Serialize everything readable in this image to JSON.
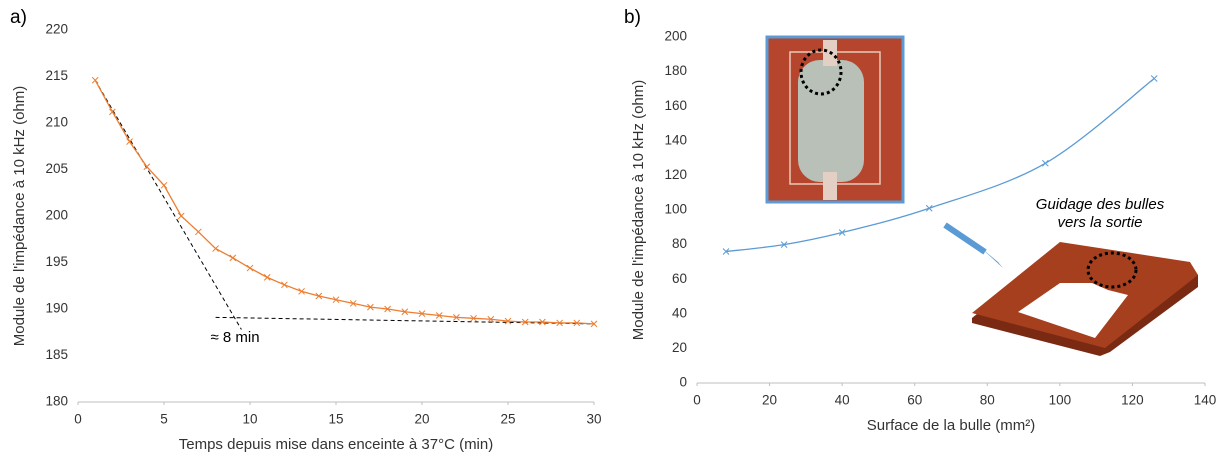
{
  "chart_data": [
    {
      "type": "line",
      "panel_label": "a)",
      "x_label": "Temps depuis mise dans enceinte à 37°C (min)",
      "y_label": "Module de l'impédance à 10 kHz (ohm)",
      "x": [
        1,
        2,
        3,
        4,
        5,
        6,
        7,
        8,
        9,
        10,
        11,
        12,
        13,
        14,
        15,
        16,
        17,
        18,
        19,
        20,
        21,
        22,
        23,
        24,
        25,
        26,
        27,
        28,
        29,
        30
      ],
      "series": [
        {
          "color": "#ed7d31",
          "values": [
            214.6,
            211.2,
            208,
            205.3,
            203.3,
            200,
            198.3,
            196.5,
            195.5,
            194.4,
            193.4,
            192.6,
            191.9,
            191.4,
            191,
            190.6,
            190.2,
            190,
            189.7,
            189.5,
            189.3,
            189.1,
            189,
            188.9,
            188.7,
            188.6,
            188.6,
            188.5,
            188.5,
            188.4
          ]
        }
      ],
      "trend_lines": [
        {
          "x": [
            1,
            9.5
          ],
          "y": [
            214.6,
            187.8
          ]
        },
        {
          "x": [
            8,
            30
          ],
          "y": [
            189.1,
            188.4
          ]
        }
      ],
      "annotation": "≈ 8 min",
      "xlim": [
        0,
        30
      ],
      "xticks": [
        0,
        5,
        10,
        15,
        20,
        25,
        30
      ],
      "ylim": [
        180,
        220
      ],
      "yticks": [
        180,
        185,
        190,
        195,
        200,
        205,
        210,
        215,
        220
      ],
      "smooth": false
    },
    {
      "type": "line",
      "panel_label": "b)",
      "x_label": "Surface de la bulle (mm²)",
      "y_label": "Module de l'impédance à 10 kHz (ohm)",
      "x": [
        8,
        24,
        40,
        64,
        96,
        126
      ],
      "series": [
        {
          "color": "#5b9bd5",
          "values": [
            76,
            80,
            87,
            101,
            127,
            176
          ]
        }
      ],
      "annotation_lines": [
        "Guidage des bulles",
        "vers la sortie"
      ],
      "xlim": [
        0,
        140
      ],
      "xticks": [
        0,
        20,
        40,
        60,
        80,
        100,
        120,
        140
      ],
      "ylim": [
        0,
        200
      ],
      "yticks": [
        0,
        20,
        40,
        60,
        80,
        100,
        120,
        140,
        160,
        180,
        200
      ],
      "smooth": true
    }
  ]
}
